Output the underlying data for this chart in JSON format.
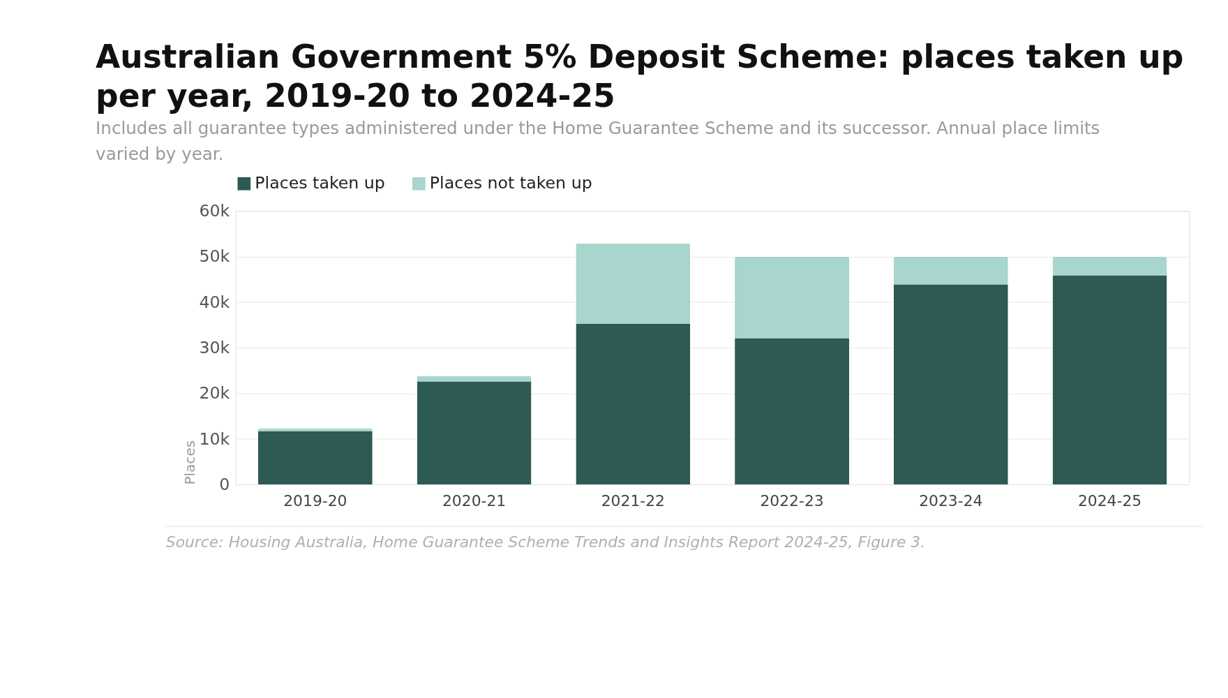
{
  "chart_data": {
    "type": "bar",
    "stacked": true,
    "title": "Australian Government 5% Deposit Scheme: places taken up per year, 2019-20 to 2024-25",
    "subtitle": "Includes all guarantee types administered under the Home Guarantee Scheme and its successor. Annual place limits varied by year.",
    "ylabel": "Places",
    "categories": [
      "2019-20",
      "2020-21",
      "2021-22",
      "2022-23",
      "2023-24",
      "2024-25"
    ],
    "series": [
      {
        "name": "Places taken up",
        "color": "#2d5a52",
        "values": [
          11700,
          22600,
          35300,
          32100,
          43900,
          45900
        ]
      },
      {
        "name": "Places not taken up",
        "color": "#a8d5cd",
        "values": [
          600,
          1200,
          17600,
          17900,
          6100,
          4100
        ]
      }
    ],
    "ylim": [
      0,
      60000
    ],
    "yticks": [
      0,
      {
        "value": 10000,
        "label": "10k"
      },
      {
        "value": 20000,
        "label": "20k"
      },
      {
        "value": 30000,
        "label": "30k"
      },
      {
        "value": 40000,
        "label": "40k"
      },
      {
        "value": 50000,
        "label": "50k"
      },
      {
        "value": 60000,
        "label": "60k"
      }
    ],
    "grid": "y",
    "legend": "top left",
    "annotations": [
      "Source: Housing Australia, Home Guarantee Scheme Trends and Insights Report 2024-25, Figure 3."
    ]
  }
}
